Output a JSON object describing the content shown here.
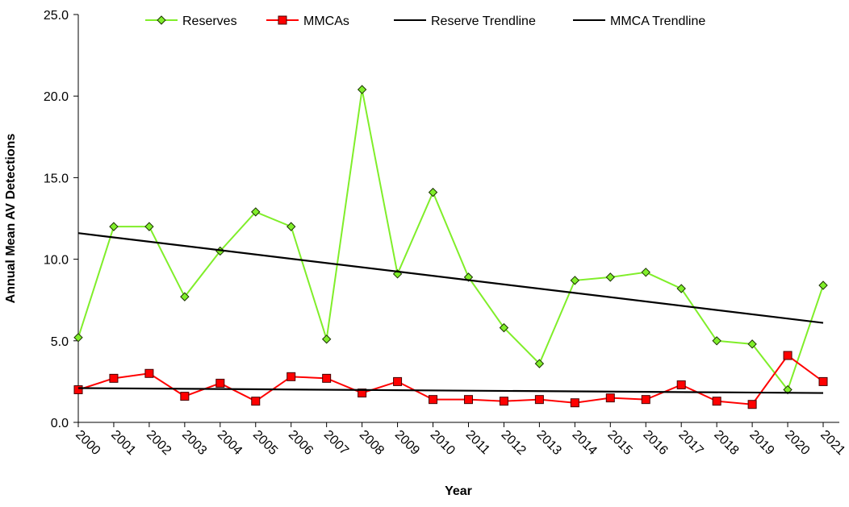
{
  "chart_data": {
    "type": "line",
    "y_label": "Annual Mean AV Detections",
    "x_label": "Year",
    "x": [
      2000,
      2001,
      2002,
      2003,
      2004,
      2005,
      2006,
      2007,
      2008,
      2009,
      2010,
      2011,
      2012,
      2013,
      2014,
      2015,
      2016,
      2017,
      2018,
      2019,
      2020,
      2021
    ],
    "xlim": [
      2000,
      2021
    ],
    "xticks": [
      2000,
      2001,
      2002,
      2003,
      2004,
      2005,
      2006,
      2007,
      2008,
      2009,
      2010,
      2011,
      2012,
      2013,
      2014,
      2015,
      2016,
      2017,
      2018,
      2019,
      2020,
      2021
    ],
    "ylim": [
      0,
      25
    ],
    "yticks": [
      {
        "value": 0,
        "label": "0.0"
      },
      {
        "value": 5,
        "label": "5.0"
      },
      {
        "value": 10,
        "label": "10.0"
      },
      {
        "value": 15,
        "label": "15.0"
      },
      {
        "value": 20,
        "label": "20.0"
      },
      {
        "value": 25,
        "label": "25.0"
      }
    ],
    "grid": false,
    "legend": "top",
    "series": [
      {
        "name": "Reserves",
        "color": "#80ee2a",
        "marker": "diamond",
        "values": [
          5.2,
          12.0,
          12.0,
          7.7,
          10.5,
          12.9,
          12.0,
          5.1,
          20.4,
          9.1,
          14.1,
          8.9,
          5.8,
          3.6,
          8.7,
          8.9,
          9.2,
          8.2,
          5.0,
          4.8,
          2.0,
          8.4
        ]
      },
      {
        "name": "MMCAs",
        "color": "#ff0000",
        "marker": "square",
        "values": [
          2.0,
          2.7,
          3.0,
          1.6,
          2.4,
          1.3,
          2.8,
          2.7,
          1.8,
          2.5,
          1.4,
          1.4,
          1.3,
          1.4,
          1.2,
          1.5,
          1.4,
          2.3,
          1.3,
          1.1,
          4.1,
          2.5
        ]
      },
      {
        "name": "Reserve Trendline",
        "color": "#000000",
        "x": [
          2000,
          2021
        ],
        "values": [
          11.6,
          6.1
        ]
      },
      {
        "name": "MMCA Trendline",
        "color": "#000000",
        "x": [
          2000,
          2021
        ],
        "values": [
          2.1,
          1.8
        ]
      }
    ]
  }
}
